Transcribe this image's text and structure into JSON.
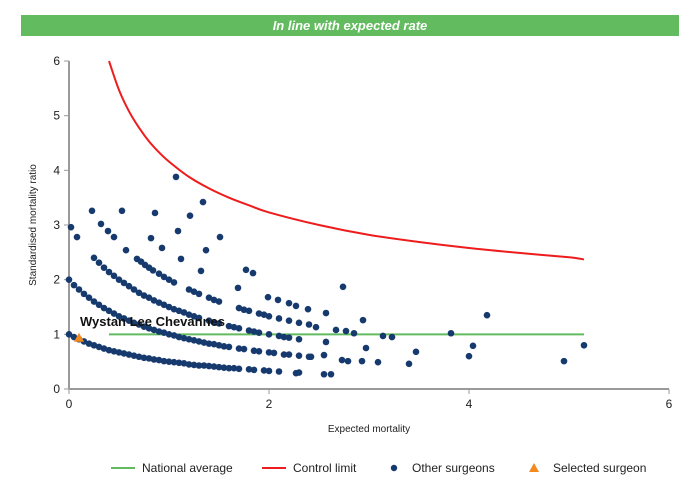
{
  "banner": {
    "text": "In line with expected rate",
    "color": "#62bb5e"
  },
  "chart_data": {
    "type": "scatter",
    "xlabel": "Expected mortality",
    "ylabel": "Standardised mortality ratio",
    "xlim": [
      0,
      6
    ],
    "ylim": [
      0,
      6
    ],
    "xticks": [
      "0",
      "2",
      "4",
      "6"
    ],
    "yticks": [
      "0",
      "1",
      "2",
      "3",
      "4",
      "5",
      "6"
    ],
    "grid": false,
    "legend_placement": "bottom",
    "annotation": "Wystan Lee Chevannes",
    "national_average": {
      "name": "National average",
      "color": "#62bb5e",
      "y": 1,
      "x": [
        0.4,
        5.15
      ]
    },
    "control_limit": {
      "name": "Control limit",
      "color": "#ee1c1c",
      "points": [
        [
          0.4,
          6.0
        ],
        [
          0.5,
          5.47
        ],
        [
          0.6,
          5.08
        ],
        [
          0.7,
          4.78
        ],
        [
          0.8,
          4.53
        ],
        [
          0.9,
          4.33
        ],
        [
          1.0,
          4.16
        ],
        [
          1.2,
          3.88
        ],
        [
          1.4,
          3.67
        ],
        [
          1.6,
          3.5
        ],
        [
          1.8,
          3.36
        ],
        [
          2.0,
          3.23
        ],
        [
          2.5,
          3.0
        ],
        [
          3.0,
          2.82
        ],
        [
          3.5,
          2.69
        ],
        [
          4.0,
          2.58
        ],
        [
          4.5,
          2.49
        ],
        [
          5.0,
          2.41
        ],
        [
          5.15,
          2.37
        ]
      ]
    },
    "other_surgeons": {
      "name": "Other surgeons",
      "color": "#173a6e",
      "points": [
        [
          0,
          1.0
        ],
        [
          0.05,
          0.95
        ],
        [
          0.1,
          0.91
        ],
        [
          0.15,
          0.87
        ],
        [
          0.2,
          0.83
        ],
        [
          0.25,
          0.8
        ],
        [
          0.3,
          0.77
        ],
        [
          0.35,
          0.74
        ],
        [
          0.4,
          0.71
        ],
        [
          0.45,
          0.69
        ],
        [
          0.5,
          0.67
        ],
        [
          0.55,
          0.65
        ],
        [
          0.6,
          0.63
        ],
        [
          0.65,
          0.61
        ],
        [
          0.7,
          0.59
        ],
        [
          0.75,
          0.57
        ],
        [
          0.8,
          0.56
        ],
        [
          0.85,
          0.54
        ],
        [
          0.9,
          0.53
        ],
        [
          0.95,
          0.51
        ],
        [
          1.0,
          0.5
        ],
        [
          1.05,
          0.49
        ],
        [
          1.1,
          0.48
        ],
        [
          1.15,
          0.47
        ],
        [
          1.2,
          0.45
        ],
        [
          1.25,
          0.44
        ],
        [
          1.3,
          0.43
        ],
        [
          1.35,
          0.43
        ],
        [
          1.4,
          0.42
        ],
        [
          1.45,
          0.41
        ],
        [
          1.5,
          0.4
        ],
        [
          1.55,
          0.39
        ],
        [
          1.6,
          0.38
        ],
        [
          1.65,
          0.38
        ],
        [
          1.7,
          0.37
        ],
        [
          1.8,
          0.36
        ],
        [
          1.85,
          0.35
        ],
        [
          1.95,
          0.34
        ],
        [
          2.0,
          0.33
        ],
        [
          2.1,
          0.32
        ],
        [
          2.3,
          0.3
        ],
        [
          0,
          2.0
        ],
        [
          0.05,
          1.9
        ],
        [
          0.1,
          1.82
        ],
        [
          0.15,
          1.74
        ],
        [
          0.2,
          1.67
        ],
        [
          0.25,
          1.6
        ],
        [
          0.3,
          1.54
        ],
        [
          0.35,
          1.48
        ],
        [
          0.4,
          1.43
        ],
        [
          0.45,
          1.38
        ],
        [
          0.5,
          1.33
        ],
        [
          0.55,
          1.29
        ],
        [
          0.6,
          1.25
        ],
        [
          0.65,
          1.21
        ],
        [
          0.7,
          1.18
        ],
        [
          0.75,
          1.14
        ],
        [
          0.8,
          1.11
        ],
        [
          0.85,
          1.08
        ],
        [
          0.9,
          1.05
        ],
        [
          0.95,
          1.03
        ],
        [
          1.0,
          1.0
        ],
        [
          1.05,
          0.98
        ],
        [
          1.1,
          0.95
        ],
        [
          1.15,
          0.93
        ],
        [
          1.2,
          0.91
        ],
        [
          1.25,
          0.89
        ],
        [
          1.3,
          0.87
        ],
        [
          1.35,
          0.85
        ],
        [
          1.4,
          0.83
        ],
        [
          1.45,
          0.82
        ],
        [
          1.5,
          0.8
        ],
        [
          1.55,
          0.78
        ],
        [
          1.6,
          0.77
        ],
        [
          1.7,
          0.74
        ],
        [
          1.75,
          0.73
        ],
        [
          1.85,
          0.7
        ],
        [
          1.9,
          0.69
        ],
        [
          2.0,
          0.67
        ],
        [
          2.05,
          0.66
        ],
        [
          2.15,
          0.63
        ],
        [
          2.2,
          0.63
        ],
        [
          2.3,
          0.61
        ],
        [
          2.4,
          0.59
        ],
        [
          0.25,
          2.4
        ],
        [
          0.3,
          2.31
        ],
        [
          0.35,
          2.22
        ],
        [
          0.4,
          2.14
        ],
        [
          0.45,
          2.07
        ],
        [
          0.5,
          2.0
        ],
        [
          0.55,
          1.94
        ],
        [
          0.6,
          1.88
        ],
        [
          0.65,
          1.82
        ],
        [
          0.7,
          1.76
        ],
        [
          0.75,
          1.71
        ],
        [
          0.8,
          1.67
        ],
        [
          0.85,
          1.62
        ],
        [
          0.9,
          1.58
        ],
        [
          0.95,
          1.54
        ],
        [
          1.0,
          1.5
        ],
        [
          1.05,
          1.46
        ],
        [
          1.1,
          1.43
        ],
        [
          1.15,
          1.4
        ],
        [
          1.2,
          1.36
        ],
        [
          1.25,
          1.33
        ],
        [
          1.3,
          1.3
        ],
        [
          1.4,
          1.25
        ],
        [
          1.45,
          1.22
        ],
        [
          1.5,
          1.2
        ],
        [
          1.6,
          1.15
        ],
        [
          1.65,
          1.13
        ],
        [
          1.7,
          1.11
        ],
        [
          1.8,
          1.07
        ],
        [
          1.85,
          1.05
        ],
        [
          1.9,
          1.03
        ],
        [
          2.0,
          1.0
        ],
        [
          2.1,
          0.97
        ],
        [
          2.15,
          0.95
        ],
        [
          2.2,
          0.94
        ],
        [
          2.3,
          0.91
        ],
        [
          0.68,
          2.38
        ],
        [
          0.72,
          2.33
        ],
        [
          0.76,
          2.27
        ],
        [
          0.8,
          2.22
        ],
        [
          0.84,
          2.17
        ],
        [
          0.9,
          2.11
        ],
        [
          0.95,
          2.05
        ],
        [
          1.0,
          2.0
        ],
        [
          1.05,
          1.95
        ],
        [
          1.2,
          1.82
        ],
        [
          1.25,
          1.78
        ],
        [
          1.3,
          1.74
        ],
        [
          1.4,
          1.67
        ],
        [
          1.45,
          1.63
        ],
        [
          1.5,
          1.6
        ],
        [
          1.7,
          1.48
        ],
        [
          1.75,
          1.45
        ],
        [
          1.9,
          1.38
        ],
        [
          1.95,
          1.36
        ],
        [
          2.0,
          1.33
        ],
        [
          2.1,
          1.29
        ],
        [
          2.2,
          1.25
        ],
        [
          2.3,
          1.21
        ],
        [
          2.4,
          1.18
        ],
        [
          0.02,
          2.96
        ],
        [
          0.08,
          2.78
        ],
        [
          0.23,
          3.26
        ],
        [
          0.32,
          3.02
        ],
        [
          0.39,
          2.89
        ],
        [
          0.45,
          2.78
        ],
        [
          0.53,
          3.26
        ],
        [
          0.57,
          2.54
        ],
        [
          0.82,
          2.76
        ],
        [
          0.86,
          3.22
        ],
        [
          0.93,
          2.58
        ],
        [
          1.07,
          3.88
        ],
        [
          1.09,
          2.89
        ],
        [
          1.12,
          2.38
        ],
        [
          1.21,
          3.17
        ],
        [
          1.34,
          3.42
        ],
        [
          1.37,
          2.54
        ],
        [
          1.51,
          2.78
        ],
        [
          1.32,
          2.16
        ],
        [
          1.77,
          2.18
        ],
        [
          1.84,
          2.12
        ],
        [
          1.69,
          1.85
        ],
        [
          2.74,
          1.87
        ],
        [
          1.8,
          1.43
        ],
        [
          1.99,
          1.68
        ],
        [
          2.09,
          1.63
        ],
        [
          2.2,
          1.57
        ],
        [
          2.27,
          1.52
        ],
        [
          2.39,
          1.46
        ],
        [
          2.57,
          1.39
        ],
        [
          2.94,
          1.26
        ],
        [
          2.47,
          1.13
        ],
        [
          2.67,
          1.08
        ],
        [
          2.77,
          1.06
        ],
        [
          2.85,
          1.02
        ],
        [
          3.14,
          0.97
        ],
        [
          3.23,
          0.95
        ],
        [
          3.82,
          1.02
        ],
        [
          4.18,
          1.35
        ],
        [
          3.47,
          0.68
        ],
        [
          2.57,
          0.86
        ],
        [
          2.97,
          0.75
        ],
        [
          4.04,
          0.79
        ],
        [
          4.0,
          0.6
        ],
        [
          3.4,
          0.46
        ],
        [
          3.09,
          0.49
        ],
        [
          2.93,
          0.51
        ],
        [
          2.73,
          0.53
        ],
        [
          2.79,
          0.51
        ],
        [
          2.55,
          0.62
        ],
        [
          2.42,
          0.59
        ],
        [
          4.95,
          0.51
        ],
        [
          5.15,
          0.8
        ],
        [
          2.55,
          0.27
        ],
        [
          2.62,
          0.27
        ],
        [
          2.27,
          0.29
        ]
      ]
    },
    "selected_surgeon": {
      "name": "Selected surgeon",
      "color": "#f28a1e",
      "points": [
        [
          0.1,
          0.92
        ]
      ]
    }
  }
}
